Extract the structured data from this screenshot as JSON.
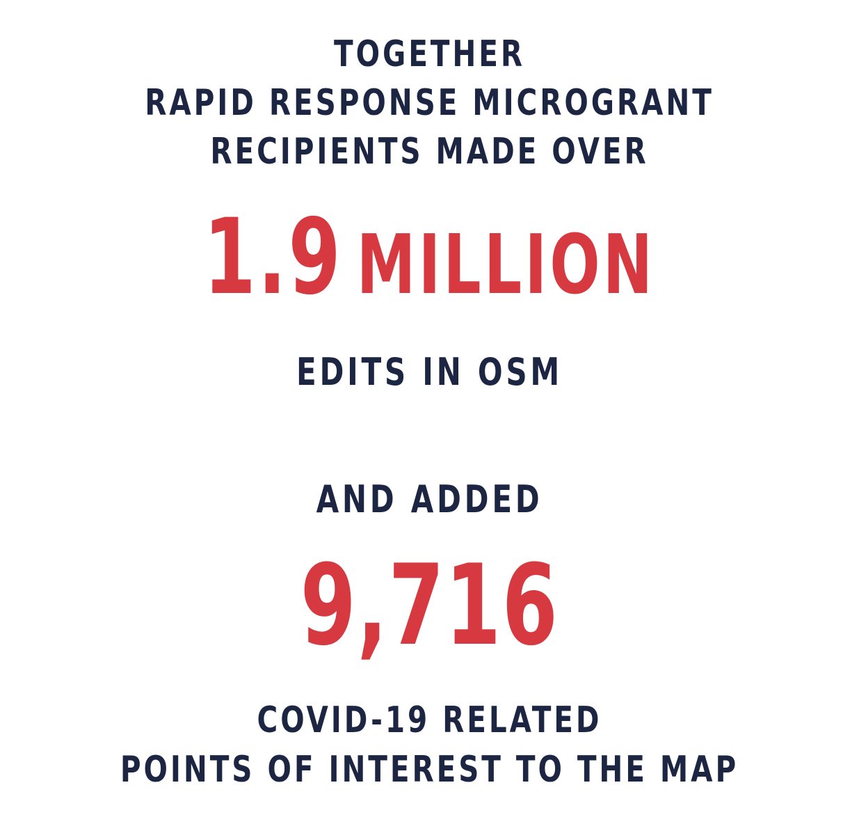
{
  "intro": {
    "line1": "TOGETHER",
    "line2": "RAPID RESPONSE MICROGRANT",
    "line3": "RECIPIENTS MADE OVER"
  },
  "edits": {
    "number": "1.9",
    "unit": "MILLION",
    "label": "EDITS IN OSM"
  },
  "added": {
    "prefix": "AND ADDED",
    "number": "9,716",
    "label_line1": "COVID-19 RELATED",
    "label_line2": "POINTS OF INTEREST TO THE MAP"
  },
  "colors": {
    "text_navy": "#1c2541",
    "accent_red": "#d63a40",
    "background": "#ffffff"
  }
}
